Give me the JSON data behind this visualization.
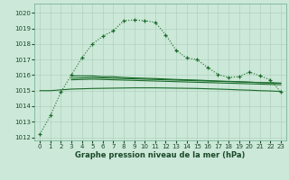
{
  "title": "Graphe pression niveau de la mer (hPa)",
  "bg_color": "#cce8d8",
  "grid_color": "#aaccbb",
  "line_color": "#1a6b2a",
  "xlim": [
    -0.5,
    23.5
  ],
  "ylim": [
    1011.8,
    1020.6
  ],
  "yticks": [
    1012,
    1013,
    1014,
    1015,
    1016,
    1017,
    1018,
    1019,
    1020
  ],
  "xticks": [
    0,
    1,
    2,
    3,
    4,
    5,
    6,
    7,
    8,
    9,
    10,
    11,
    12,
    13,
    14,
    15,
    16,
    17,
    18,
    19,
    20,
    21,
    22,
    23
  ],
  "series1_x": [
    0,
    1,
    2,
    3,
    4,
    5,
    6,
    7,
    8,
    9,
    10,
    11,
    12,
    13,
    14,
    15,
    16,
    17,
    18,
    19,
    20,
    21,
    22,
    23
  ],
  "series1_y": [
    1012.2,
    1013.4,
    1014.9,
    1016.0,
    1017.1,
    1018.0,
    1018.5,
    1018.85,
    1019.5,
    1019.55,
    1019.5,
    1019.4,
    1018.6,
    1017.6,
    1017.1,
    1017.0,
    1016.5,
    1016.05,
    1015.85,
    1015.9,
    1016.2,
    1015.95,
    1015.7,
    1014.9
  ],
  "series2_x": [
    3,
    4,
    5,
    6,
    7,
    8,
    9,
    10,
    11,
    12,
    13,
    14,
    15,
    16,
    17,
    18,
    19,
    20,
    21,
    22,
    23
  ],
  "series2_y": [
    1015.95,
    1015.95,
    1015.95,
    1015.9,
    1015.9,
    1015.85,
    1015.82,
    1015.8,
    1015.78,
    1015.75,
    1015.72,
    1015.7,
    1015.68,
    1015.65,
    1015.62,
    1015.6,
    1015.58,
    1015.55,
    1015.52,
    1015.5,
    1015.48
  ],
  "series3_x": [
    3,
    4,
    5,
    6,
    7,
    8,
    9,
    10,
    11,
    12,
    13,
    14,
    15,
    16,
    17,
    18,
    19,
    20,
    21,
    22,
    23
  ],
  "series3_y": [
    1015.8,
    1015.82,
    1015.84,
    1015.82,
    1015.8,
    1015.78,
    1015.76,
    1015.74,
    1015.72,
    1015.7,
    1015.68,
    1015.66,
    1015.64,
    1015.62,
    1015.6,
    1015.58,
    1015.56,
    1015.54,
    1015.52,
    1015.5,
    1015.48
  ],
  "series4_x": [
    3,
    4,
    5,
    6,
    7,
    8,
    9,
    10,
    11,
    12,
    13,
    14,
    15,
    16,
    17,
    18,
    19,
    20,
    21,
    22,
    23
  ],
  "series4_y": [
    1015.7,
    1015.72,
    1015.74,
    1015.72,
    1015.7,
    1015.68,
    1015.66,
    1015.64,
    1015.62,
    1015.6,
    1015.58,
    1015.56,
    1015.54,
    1015.52,
    1015.5,
    1015.48,
    1015.46,
    1015.44,
    1015.42,
    1015.4,
    1015.38
  ],
  "series5_x": [
    0,
    1,
    2,
    3,
    4,
    5,
    6,
    7,
    8,
    9,
    10,
    11,
    12,
    13,
    14,
    15,
    16,
    17,
    18,
    19,
    20,
    21,
    22,
    23
  ],
  "series5_y": [
    1015.0,
    1015.0,
    1015.05,
    1015.1,
    1015.12,
    1015.14,
    1015.15,
    1015.16,
    1015.17,
    1015.18,
    1015.18,
    1015.18,
    1015.17,
    1015.16,
    1015.15,
    1015.14,
    1015.12,
    1015.1,
    1015.08,
    1015.05,
    1015.03,
    1015.0,
    1014.98,
    1014.95
  ]
}
